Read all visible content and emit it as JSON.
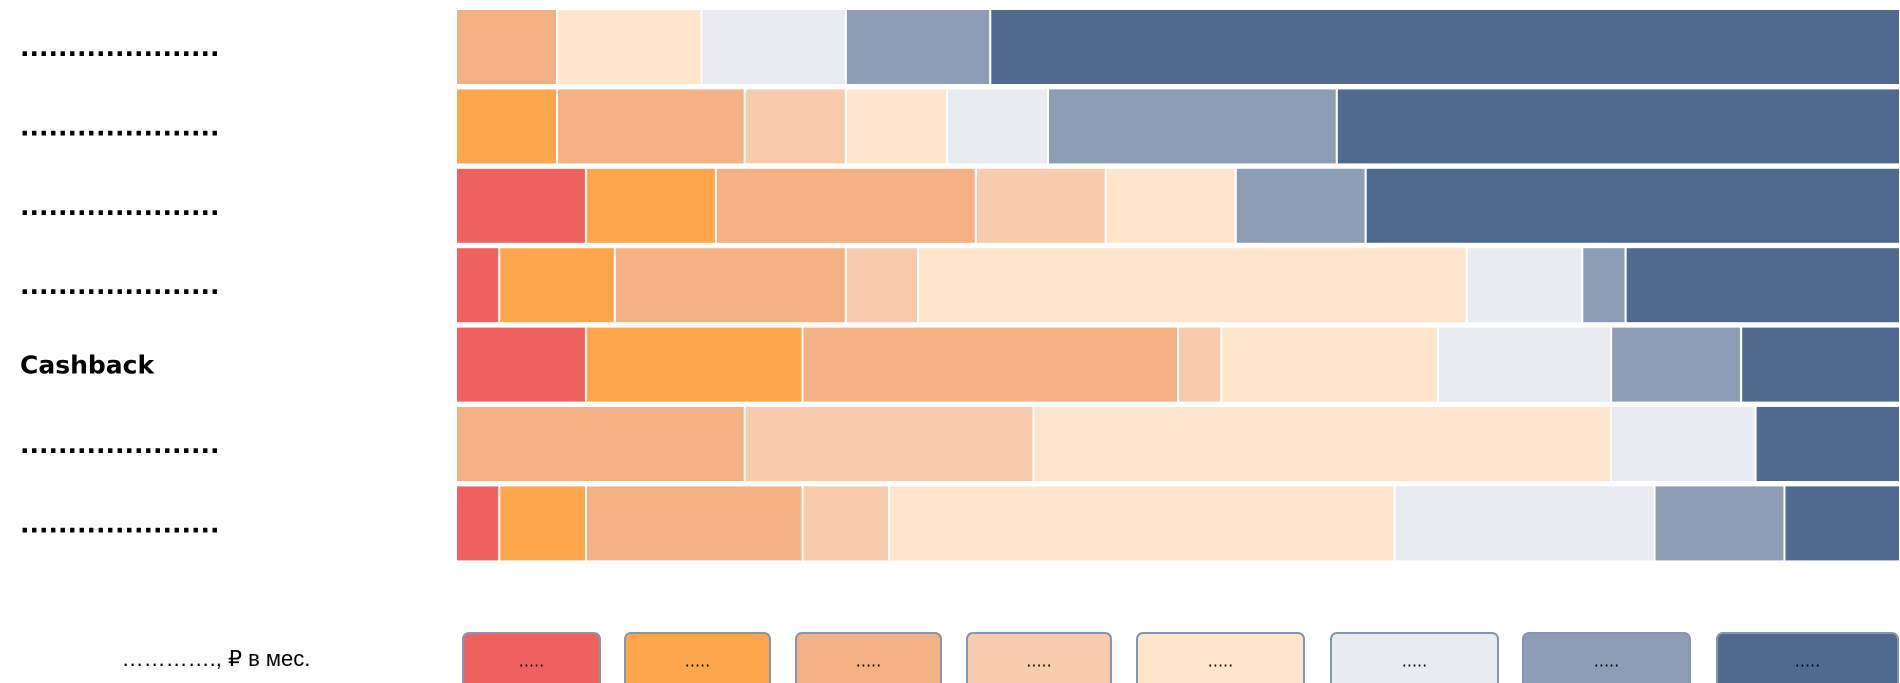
{
  "chart_data": {
    "type": "stacked-bar-100",
    "categories": [
      ".....................",
      ".....................",
      ".....................",
      ".....................",
      "Cashback",
      ".....................",
      "....................."
    ],
    "legend_title": "…………., ₽ в мес.",
    "series": [
      {
        "name": ".....",
        "color": "#EE6360",
        "values": [
          null,
          null,
          9,
          3,
          9,
          null,
          3
        ]
      },
      {
        "name": ".....",
        "color": "#FEA64B",
        "values": [
          null,
          7,
          9,
          8,
          15,
          null,
          6
        ]
      },
      {
        "name": ".....",
        "color": "#F4B183",
        "values": [
          7,
          13,
          18,
          16,
          26,
          20,
          15
        ]
      },
      {
        "name": ".....",
        "color": "#F8CBAD",
        "values": [
          null,
          7,
          9,
          5,
          3,
          20,
          6
        ]
      },
      {
        "name": ".....",
        "color": "#FFE5CC",
        "values": [
          10,
          7,
          9,
          38,
          15,
          40,
          35
        ]
      },
      {
        "name": ".....",
        "color": "#E8EBF0",
        "values": [
          10,
          7,
          null,
          8,
          12,
          10,
          18
        ]
      },
      {
        "name": ".....",
        "color": "#8C9DB5",
        "values": [
          10,
          20,
          9,
          3,
          9,
          null,
          9
        ]
      },
      {
        "name": ".....",
        "color": "#506A8F",
        "values": [
          63,
          39,
          37,
          19,
          11,
          10,
          8
        ]
      }
    ]
  }
}
